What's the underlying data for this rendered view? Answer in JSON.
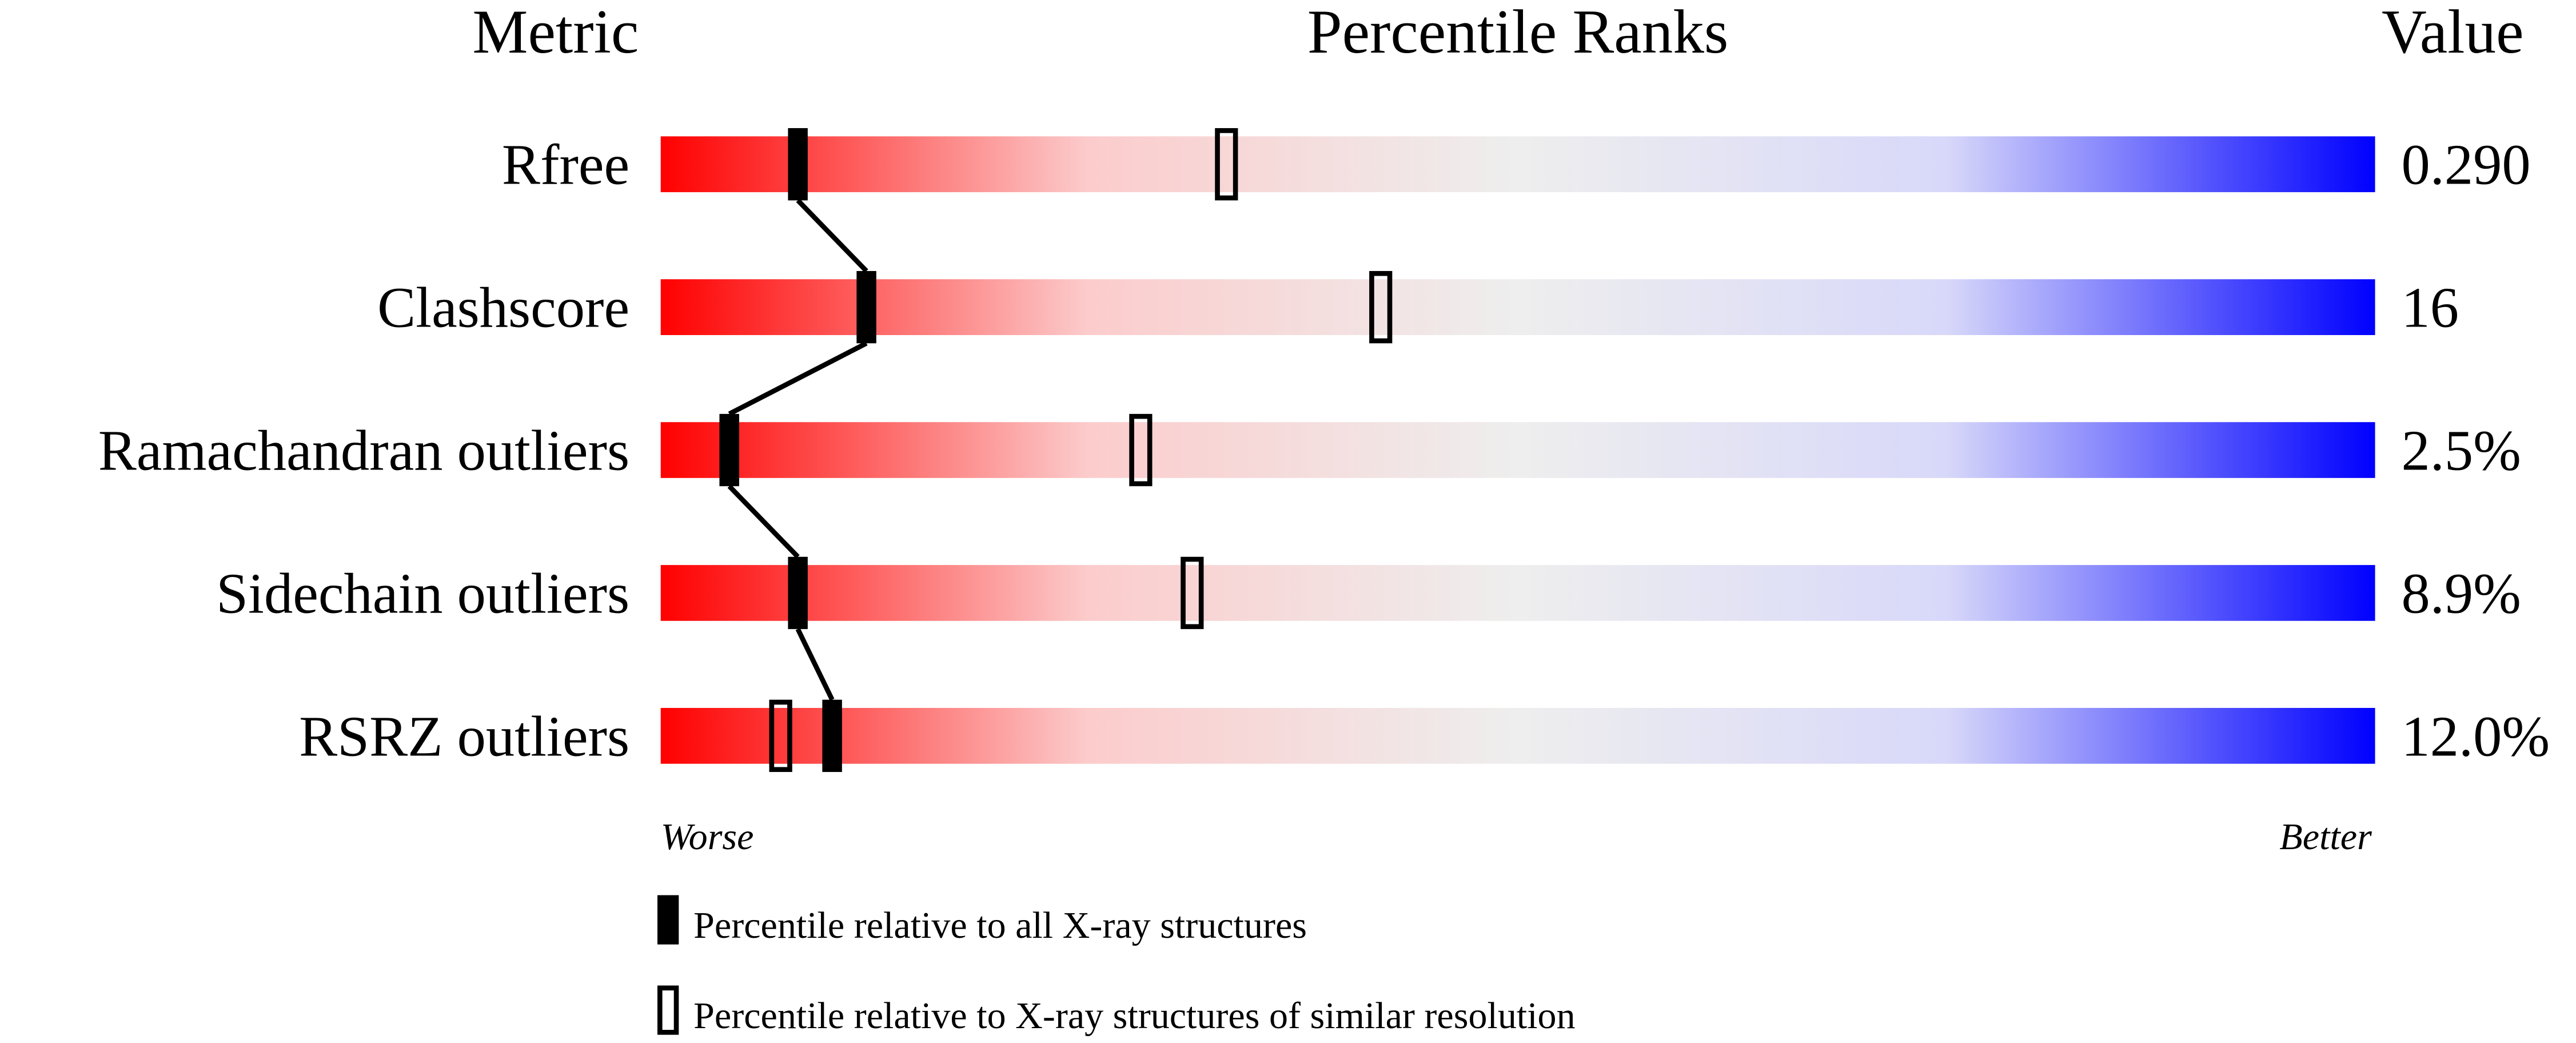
{
  "chart_data": {
    "type": "percentile-slider",
    "headers": {
      "metric": "Metric",
      "ranks": "Percentile Ranks",
      "value": "Value"
    },
    "categories": [
      "Rfree",
      "Clashscore",
      "Ramachandran outliers",
      "Sidechain outliers",
      "RSRZ outliers"
    ],
    "metric_values": [
      "0.290",
      "16",
      "2.5%",
      "8.9%",
      "12.0%"
    ],
    "xlim": [
      0,
      100
    ],
    "scale_labels": {
      "low": "Worse",
      "high": "Better"
    },
    "gradient": [
      "#ff0000",
      "#fccccc",
      "#eeeeee",
      "#d8d8fa",
      "#0000ff"
    ],
    "series": [
      {
        "name": "Percentile relative to all X-ray structures",
        "color": "#000000",
        "style": "filled",
        "values": [
          8,
          12,
          4,
          8,
          10
        ]
      },
      {
        "name": "Percentile relative to X-ray structures of similar resolution",
        "color": "#000000",
        "style": "hollow",
        "values": [
          33,
          42,
          28,
          31,
          7
        ]
      }
    ]
  }
}
